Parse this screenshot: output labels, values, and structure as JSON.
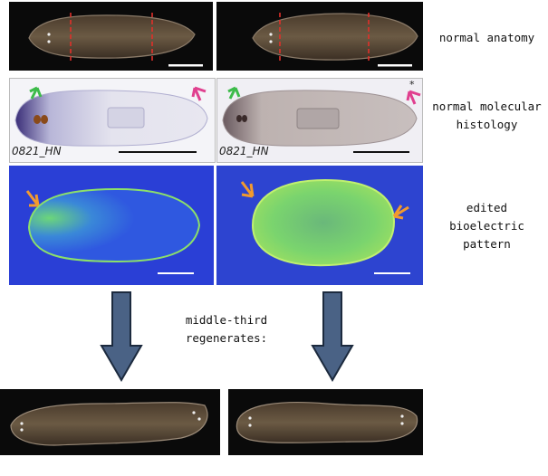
{
  "labels": {
    "row1": "normal anatomy",
    "row2": "normal molecular\nhistology",
    "row3": "edited bioelectric\npattern",
    "middle": "middle-third\nregenerates:"
  },
  "stamps": {
    "left": "0821_HN",
    "right": "0821_HN"
  },
  "marks": {
    "asterisk": "*"
  },
  "colors": {
    "anatomy_bg": "#0a0a0a",
    "worm_body": "#5a4a38",
    "histology_bg": "#f4f4f8",
    "anterior_stain": "#3a2e78",
    "voltage_bg": "#2a3fd6",
    "voltage_glow": "#7fe06a",
    "arrow_green": "#3dbb4a",
    "arrow_magenta": "#e0408f",
    "arrow_orange": "#f29a2e",
    "cut_line": "#e0302a",
    "big_arrow_fill": "#4a6285",
    "big_arrow_stroke": "#1c2a3e"
  },
  "icons": {
    "cut": "dashed-red-line",
    "pointer": "feathered-arrow",
    "down": "block-down-arrow",
    "scale": "white-scale-bar"
  }
}
